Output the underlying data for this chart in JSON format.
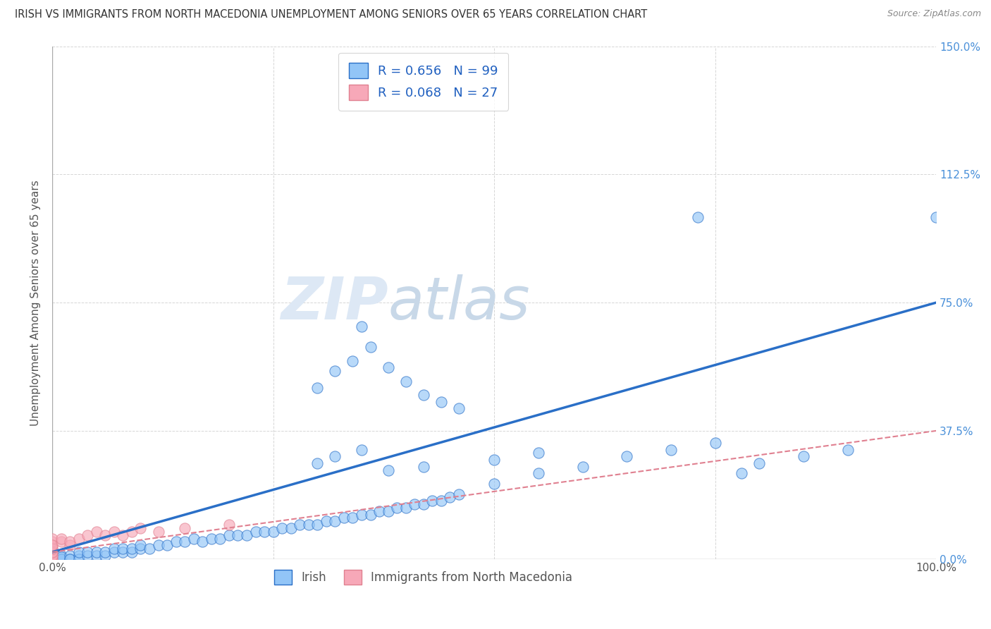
{
  "title": "IRISH VS IMMIGRANTS FROM NORTH MACEDONIA UNEMPLOYMENT AMONG SENIORS OVER 65 YEARS CORRELATION CHART",
  "source": "Source: ZipAtlas.com",
  "ylabel": "Unemployment Among Seniors over 65 years",
  "xlim": [
    0.0,
    1.0
  ],
  "ylim": [
    0.0,
    1.5
  ],
  "x_ticks": [
    0.0,
    0.25,
    0.5,
    0.75,
    1.0
  ],
  "x_tick_labels": [
    "0.0%",
    "",
    "",
    "",
    "100.0%"
  ],
  "y_tick_labels_right": [
    "0.0%",
    "37.5%",
    "75.0%",
    "112.5%",
    "150.0%"
  ],
  "y_ticks": [
    0.0,
    0.375,
    0.75,
    1.125,
    1.5
  ],
  "irish_R": 0.656,
  "irish_N": 99,
  "mac_R": 0.068,
  "mac_N": 27,
  "irish_color": "#92c5f7",
  "mac_color": "#f7a8b8",
  "irish_line_color": "#2a6fc7",
  "mac_line_color": "#e08090",
  "watermark_bold": "ZIP",
  "watermark_light": "atlas",
  "background_color": "#ffffff",
  "irish_scatter_x": [
    0.0,
    0.0,
    0.0,
    0.0,
    0.0,
    0.0,
    0.0,
    0.0,
    0.0,
    0.0,
    0.01,
    0.01,
    0.01,
    0.01,
    0.02,
    0.02,
    0.02,
    0.03,
    0.03,
    0.03,
    0.04,
    0.04,
    0.05,
    0.05,
    0.06,
    0.06,
    0.07,
    0.07,
    0.08,
    0.08,
    0.09,
    0.09,
    0.1,
    0.1,
    0.11,
    0.12,
    0.13,
    0.14,
    0.15,
    0.16,
    0.17,
    0.18,
    0.19,
    0.2,
    0.21,
    0.22,
    0.23,
    0.24,
    0.25,
    0.26,
    0.27,
    0.28,
    0.29,
    0.3,
    0.31,
    0.32,
    0.33,
    0.34,
    0.35,
    0.36,
    0.37,
    0.38,
    0.39,
    0.4,
    0.41,
    0.42,
    0.43,
    0.44,
    0.45,
    0.46,
    0.3,
    0.32,
    0.34,
    0.36,
    0.35,
    0.38,
    0.4,
    0.42,
    0.44,
    0.46,
    0.5,
    0.55,
    0.6,
    0.65,
    0.7,
    0.75,
    0.78,
    0.8,
    0.85,
    0.9,
    0.73,
    1.0,
    0.3,
    0.32,
    0.35,
    0.38,
    0.42,
    0.5,
    0.55
  ],
  "irish_scatter_y": [
    0.0,
    0.005,
    0.01,
    0.015,
    0.0,
    0.005,
    0.01,
    0.0,
    0.005,
    0.0,
    0.0,
    0.01,
    0.0,
    0.005,
    0.0,
    0.01,
    0.0,
    0.01,
    0.0,
    0.02,
    0.01,
    0.02,
    0.01,
    0.02,
    0.01,
    0.02,
    0.02,
    0.03,
    0.02,
    0.03,
    0.02,
    0.03,
    0.03,
    0.04,
    0.03,
    0.04,
    0.04,
    0.05,
    0.05,
    0.06,
    0.05,
    0.06,
    0.06,
    0.07,
    0.07,
    0.07,
    0.08,
    0.08,
    0.08,
    0.09,
    0.09,
    0.1,
    0.1,
    0.1,
    0.11,
    0.11,
    0.12,
    0.12,
    0.13,
    0.13,
    0.14,
    0.14,
    0.15,
    0.15,
    0.16,
    0.16,
    0.17,
    0.17,
    0.18,
    0.19,
    0.5,
    0.55,
    0.58,
    0.62,
    0.68,
    0.56,
    0.52,
    0.48,
    0.46,
    0.44,
    0.22,
    0.25,
    0.27,
    0.3,
    0.32,
    0.34,
    0.25,
    0.28,
    0.3,
    0.32,
    1.0,
    1.0,
    0.28,
    0.3,
    0.32,
    0.26,
    0.27,
    0.29,
    0.31
  ],
  "mac_scatter_x": [
    0.0,
    0.0,
    0.0,
    0.0,
    0.0,
    0.0,
    0.0,
    0.0,
    0.0,
    0.0,
    0.0,
    0.0,
    0.01,
    0.01,
    0.02,
    0.02,
    0.03,
    0.04,
    0.05,
    0.06,
    0.07,
    0.08,
    0.09,
    0.1,
    0.12,
    0.15,
    0.2
  ],
  "mac_scatter_y": [
    0.0,
    0.01,
    0.02,
    0.03,
    0.04,
    0.05,
    0.06,
    0.0,
    0.01,
    0.02,
    0.03,
    0.04,
    0.05,
    0.06,
    0.04,
    0.05,
    0.06,
    0.07,
    0.08,
    0.07,
    0.08,
    0.07,
    0.08,
    0.09,
    0.08,
    0.09,
    0.1
  ],
  "irish_regline_x": [
    0.0,
    1.0
  ],
  "irish_regline_y": [
    0.02,
    0.75
  ],
  "mac_regline_x": [
    0.0,
    1.0
  ],
  "mac_regline_y": [
    0.02,
    0.375
  ]
}
